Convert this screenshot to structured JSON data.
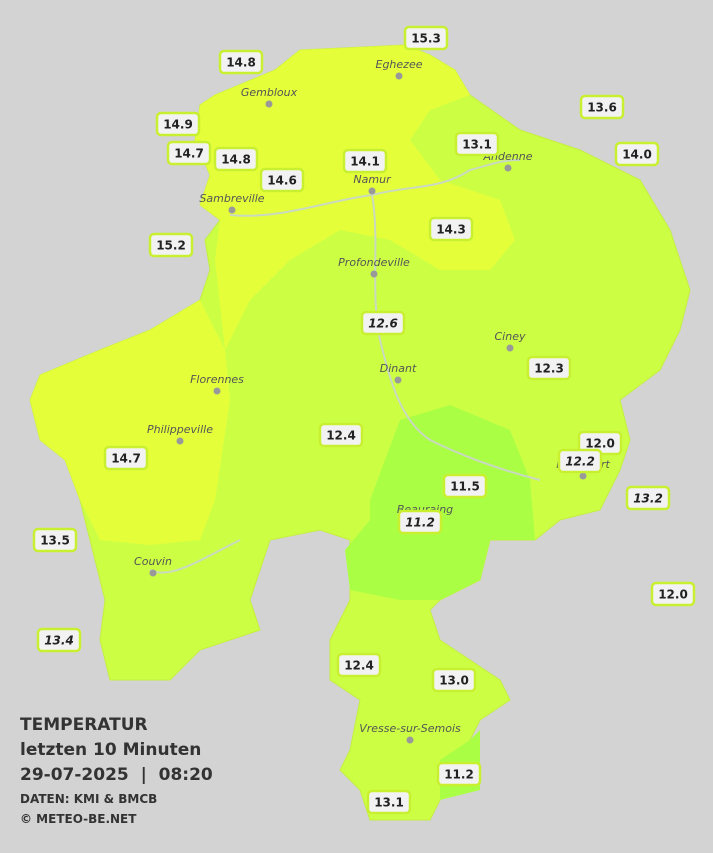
{
  "legend": {
    "title": "TEMPERATUR",
    "subtitle": "letzten 10 Minuten",
    "datetime": "29-07-2025  |  08:20",
    "source": "DATEN: KMI & BMCB",
    "copyright": "© METEO-BE.NET"
  },
  "towns": [
    "Eghezee",
    "Gembloux",
    "Andenne",
    "Namur",
    "Sambreville",
    "Profondeville",
    "Ciney",
    "Dinant",
    "Florennes",
    "Philippeville",
    "Rochefort",
    "Beauraing",
    "Couvin",
    "Vresse-sur-Semois"
  ],
  "readings": [
    {
      "value": "15.3",
      "italic": false
    },
    {
      "value": "14.8",
      "italic": false
    },
    {
      "value": "14.9",
      "italic": false
    },
    {
      "value": "14.7",
      "italic": false
    },
    {
      "value": "14.8",
      "italic": false
    },
    {
      "value": "14.6",
      "italic": false
    },
    {
      "value": "14.1",
      "italic": false
    },
    {
      "value": "13.1",
      "italic": false
    },
    {
      "value": "13.6",
      "italic": false
    },
    {
      "value": "14.0",
      "italic": false
    },
    {
      "value": "15.2",
      "italic": false
    },
    {
      "value": "14.3",
      "italic": false
    },
    {
      "value": "12.6",
      "italic": true
    },
    {
      "value": "12.3",
      "italic": false
    },
    {
      "value": "12.4",
      "italic": false
    },
    {
      "value": "12.0",
      "italic": false
    },
    {
      "value": "12.2",
      "italic": true
    },
    {
      "value": "14.7",
      "italic": false
    },
    {
      "value": "11.5",
      "italic": false
    },
    {
      "value": "13.2",
      "italic": true
    },
    {
      "value": "11.2",
      "italic": true
    },
    {
      "value": "13.5",
      "italic": false
    },
    {
      "value": "12.0",
      "italic": false
    },
    {
      "value": "13.4",
      "italic": true
    },
    {
      "value": "12.4",
      "italic": false
    },
    {
      "value": "13.0",
      "italic": false
    },
    {
      "value": "11.2",
      "italic": false
    },
    {
      "value": "13.1",
      "italic": false
    }
  ]
}
